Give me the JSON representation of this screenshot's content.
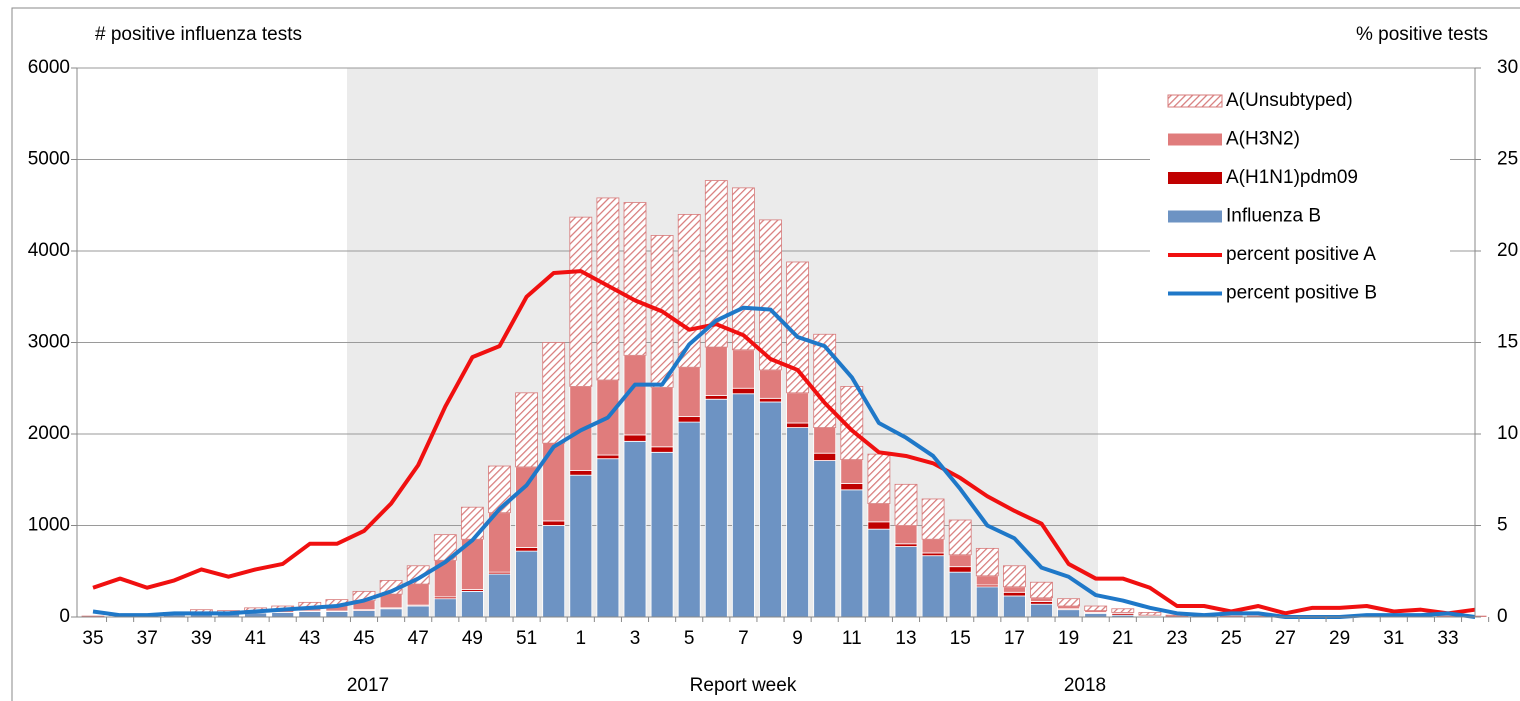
{
  "chart_data": {
    "type": "bar",
    "ylabel": "# positive influenza tests",
    "y2label": "% positive tests",
    "xlabel": "Report week",
    "year_labels": [
      "2017",
      "2018"
    ],
    "categories": [
      "35",
      null,
      "37",
      null,
      "39",
      null,
      "41",
      null,
      "43",
      null,
      "45",
      null,
      "47",
      null,
      "49",
      null,
      "51",
      null,
      "1",
      null,
      "3",
      null,
      "5",
      null,
      "7",
      null,
      "9",
      null,
      "11",
      null,
      "13",
      null,
      "15",
      null,
      "17",
      null,
      "19",
      null,
      "21",
      null,
      "23",
      null,
      "25",
      null,
      "27",
      null,
      "29",
      null,
      "31",
      null,
      "33",
      null
    ],
    "ylim": [
      0,
      6000
    ],
    "yticks": [
      0,
      1000,
      2000,
      3000,
      4000,
      5000,
      6000
    ],
    "y2lim": [
      0,
      30
    ],
    "y2ticks": [
      0,
      5,
      10,
      15,
      20,
      25,
      30
    ],
    "grid": true,
    "series": [
      {
        "name": "A(Unsubtyped)",
        "type": "bar",
        "pattern": "hatch",
        "color": "#d77b7b",
        "values": [
          3,
          5,
          10,
          15,
          25,
          20,
          30,
          40,
          55,
          65,
          100,
          150,
          200,
          280,
          350,
          510,
          810,
          1100,
          1850,
          1990,
          1670,
          1660,
          1670,
          1820,
          1770,
          1640,
          1430,
          1020,
          800,
          540,
          450,
          440,
          380,
          300,
          230,
          170,
          80,
          50,
          40,
          30,
          10,
          5,
          5,
          5,
          5,
          5,
          5,
          5,
          5,
          5,
          5,
          5
        ]
      },
      {
        "name": "A(H3N2)",
        "type": "bar",
        "color": "#e07c7c",
        "values": [
          2,
          5,
          5,
          10,
          15,
          15,
          25,
          30,
          40,
          60,
          100,
          150,
          230,
          400,
          550,
          650,
          880,
          850,
          920,
          820,
          870,
          650,
          540,
          530,
          420,
          310,
          330,
          280,
          260,
          200,
          200,
          150,
          130,
          100,
          60,
          40,
          30,
          20,
          10,
          5,
          5,
          0,
          0,
          0,
          0,
          0,
          0,
          0,
          0,
          0,
          0,
          0
        ]
      },
      {
        "name": "A(H1N1)pdm09",
        "type": "bar",
        "color": "#c00000",
        "values": [
          0,
          0,
          0,
          0,
          0,
          0,
          0,
          0,
          5,
          5,
          10,
          10,
          10,
          20,
          20,
          20,
          40,
          50,
          50,
          40,
          70,
          60,
          60,
          40,
          60,
          40,
          50,
          80,
          70,
          80,
          30,
          30,
          60,
          20,
          40,
          30,
          10,
          10,
          20,
          5,
          0,
          0,
          0,
          0,
          0,
          0,
          0,
          0,
          0,
          0,
          0,
          0
        ]
      },
      {
        "name": "Influenza B",
        "type": "bar",
        "color": "#6d93c3",
        "values": [
          5,
          10,
          15,
          25,
          40,
          35,
          45,
          50,
          60,
          60,
          70,
          90,
          120,
          200,
          280,
          470,
          720,
          1000,
          1550,
          1730,
          1920,
          1800,
          2130,
          2380,
          2440,
          2350,
          2070,
          1710,
          1390,
          960,
          770,
          670,
          490,
          330,
          230,
          140,
          80,
          40,
          20,
          10,
          5,
          5,
          5,
          5,
          5,
          5,
          5,
          5,
          5,
          5,
          5,
          5
        ]
      },
      {
        "name": "percent positive A",
        "type": "line",
        "axis": "y2",
        "color": "#f01010",
        "values": [
          1.6,
          2.1,
          1.6,
          2.0,
          2.6,
          2.2,
          2.6,
          2.9,
          4.0,
          4.0,
          4.7,
          6.2,
          8.3,
          11.5,
          14.2,
          14.8,
          17.5,
          18.8,
          18.9,
          18.1,
          17.3,
          16.7,
          15.7,
          16.0,
          15.4,
          14.1,
          13.5,
          11.7,
          10.2,
          9.0,
          8.8,
          8.4,
          7.6,
          6.6,
          5.8,
          5.1,
          2.9,
          2.1,
          2.1,
          1.6,
          0.6,
          0.6,
          0.3,
          0.6,
          0.2,
          0.5,
          0.5,
          0.6,
          0.3,
          0.4,
          0.2,
          0.4
        ]
      },
      {
        "name": "percent positive B",
        "type": "line",
        "axis": "y2",
        "color": "#1f78c8",
        "values": [
          0.3,
          0.1,
          0.1,
          0.2,
          0.2,
          0.2,
          0.3,
          0.4,
          0.5,
          0.6,
          0.9,
          1.4,
          2.1,
          3.0,
          4.2,
          5.9,
          7.2,
          9.3,
          10.2,
          10.9,
          12.7,
          12.7,
          14.9,
          16.2,
          16.9,
          16.8,
          15.3,
          14.8,
          13.1,
          10.6,
          9.8,
          8.8,
          7.0,
          5.0,
          4.3,
          2.7,
          2.2,
          1.2,
          0.9,
          0.5,
          0.2,
          0.1,
          0.2,
          0.2,
          0,
          0,
          0,
          0.1,
          0.1,
          0.1,
          0.2,
          0
        ]
      }
    ]
  }
}
